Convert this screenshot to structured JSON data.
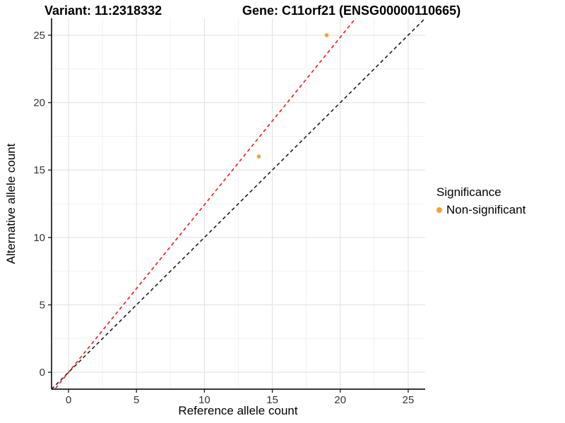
{
  "chart_data": {
    "type": "scatter",
    "titles": {
      "left": "Variant: 11:2318332",
      "right": "Gene: C11orf21 (ENSG00000110665)"
    },
    "xlabel": "Reference allele count",
    "ylabel": "Alternative allele count",
    "xlim": [
      -1.25,
      26.25
    ],
    "ylim": [
      -1.25,
      26.25
    ],
    "xticks": [
      0,
      5,
      10,
      15,
      20,
      25
    ],
    "yticks": [
      0,
      5,
      10,
      15,
      20,
      25
    ],
    "minor_step": 2.5,
    "grid": "major+minor on white, axis lines left and bottom only",
    "points": [
      {
        "x": 14,
        "y": 16,
        "series": "Non-significant"
      },
      {
        "x": 19,
        "y": 25,
        "series": "Non-significant"
      }
    ],
    "lines": [
      {
        "name": "identity-line",
        "slope": 1.0,
        "intercept": 0,
        "color": "#1c1c1c",
        "style": "dashed"
      },
      {
        "name": "allelic-ratio-line",
        "slope": 1.2424,
        "intercept": 0,
        "color": "#ff1414",
        "style": "dashed"
      }
    ],
    "legend": {
      "title": "Significance",
      "position": "right",
      "items": [
        {
          "label": "Non-significant",
          "color": "#F8A02C"
        }
      ]
    },
    "colors": {
      "point": "#F8A02C",
      "grid_major": "#E2E2E2",
      "grid_minor": "#F1F1F1",
      "axis": "#1a1a1a",
      "tick_text": "#333333"
    }
  }
}
